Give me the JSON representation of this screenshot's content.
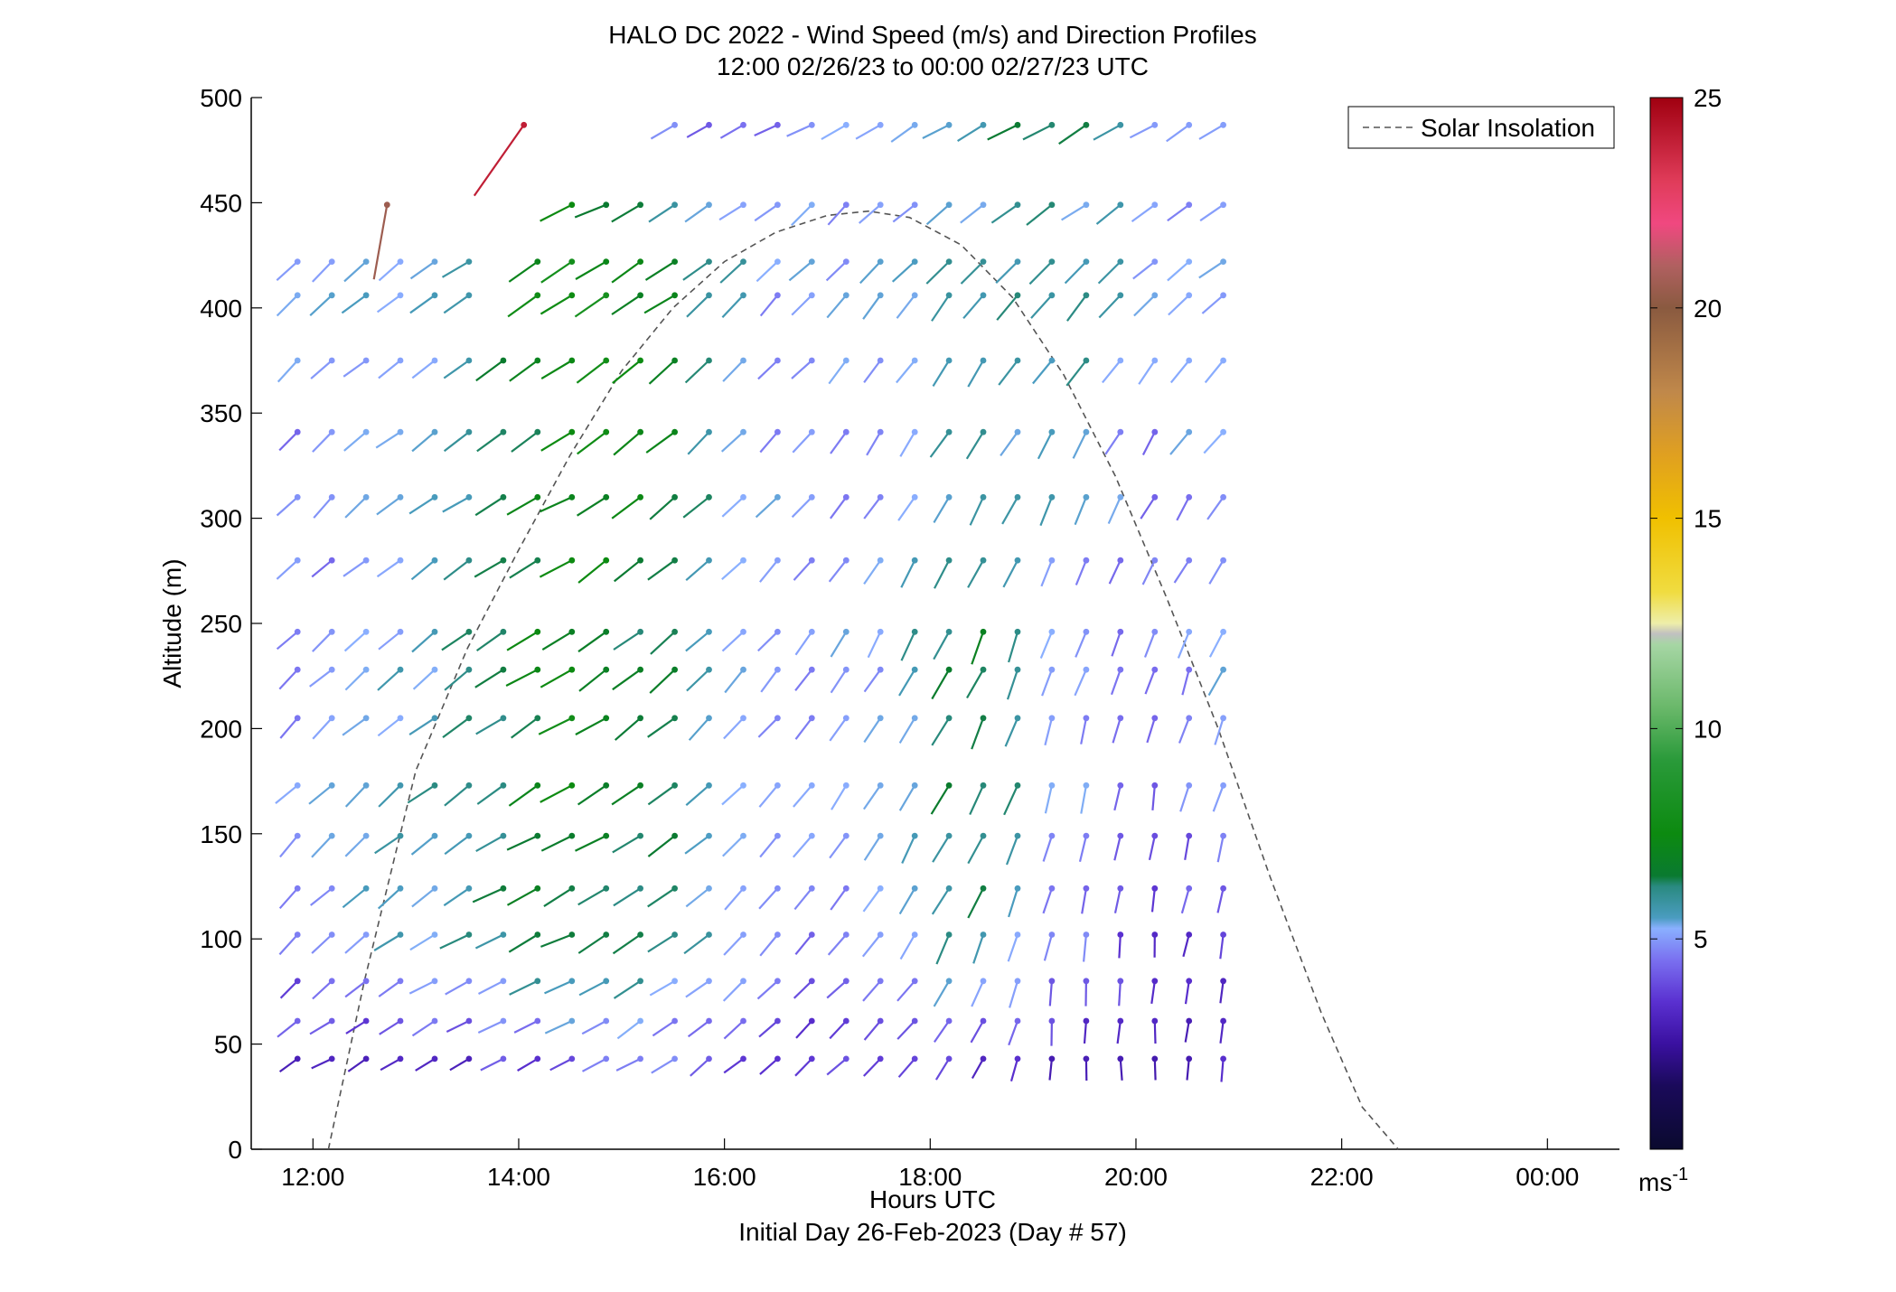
{
  "chart_data": {
    "type": "wind-barb-profile",
    "title": "HALO DC 2022 - Wind Speed (m/s) and Direction Profiles",
    "subtitle": "12:00 02/26/23 to 00:00 02/27/23  UTC",
    "xlabel": "Hours UTC",
    "xlabel2": "Initial Day 26-Feb-2023 (Day # 57)",
    "ylabel": "Altitude (m)",
    "xlim": [
      11.4,
      24.7
    ],
    "ylim": [
      0,
      500
    ],
    "x_ticks": [
      12,
      14,
      16,
      18,
      20,
      22,
      24
    ],
    "x_tick_labels": [
      "12:00",
      "14:00",
      "16:00",
      "18:00",
      "20:00",
      "22:00",
      "00:00"
    ],
    "y_ticks": [
      0,
      50,
      100,
      150,
      200,
      250,
      300,
      350,
      400,
      450,
      500
    ],
    "y_tick_labels": [
      "0",
      "50",
      "100",
      "150",
      "200",
      "250",
      "300",
      "350",
      "400",
      "450",
      "500"
    ],
    "colorbar": {
      "min": 0,
      "max": 25,
      "ticks": [
        5,
        10,
        15,
        20,
        25
      ],
      "tick_labels": [
        "5",
        "10",
        "15",
        "20",
        "25"
      ],
      "unit_label": "ms",
      "unit_exp": "-1"
    },
    "legend": {
      "entry": "Solar Insolation",
      "position": "top-right",
      "style": "dashed",
      "color": "#555555"
    },
    "solar_insolation": {
      "x": [
        12.15,
        12.5,
        13,
        13.5,
        14,
        14.5,
        15,
        15.5,
        16,
        16.5,
        17,
        17.4,
        17.8,
        18.3,
        18.8,
        19.3,
        19.8,
        20.3,
        20.8,
        21.3,
        21.8,
        22.2,
        22.55
      ],
      "y": [
        0,
        80,
        180,
        238,
        285,
        330,
        370,
        400,
        422,
        436,
        444,
        446,
        443,
        430,
        405,
        368,
        320,
        262,
        200,
        130,
        65,
        20,
        0
      ]
    },
    "altitudes": [
      43,
      61,
      80,
      102,
      124,
      149,
      173,
      205,
      228,
      246,
      280,
      310,
      341,
      375,
      406,
      422,
      449,
      487
    ],
    "times_start": 11.85,
    "times_step": 0.3333,
    "times_count": 28,
    "speed_anchors": {
      "x": [
        11.85,
        13.5,
        14.5,
        15.5,
        16.5,
        17.5,
        18.4,
        19.3,
        20.2,
        21.1,
        22.0,
        22.85
      ],
      "z": [
        43,
        100,
        175,
        250,
        330,
        410,
        449,
        487
      ],
      "values": [
        [
          3.5,
          3.5,
          4.0,
          4.5,
          3.5,
          3.5,
          3.5,
          3.0,
          3.0,
          3.0,
          3.5,
          3.5
        ],
        [
          4.5,
          6.0,
          7.0,
          6.0,
          4.5,
          4.5,
          6.5,
          4.5,
          3.5,
          3.5,
          5.5,
          4.5
        ],
        [
          5.0,
          6.0,
          7.5,
          6.5,
          5.0,
          5.0,
          7.0,
          5.0,
          4.5,
          5.0,
          6.5,
          6.0
        ],
        [
          4.5,
          6.0,
          7.5,
          6.5,
          5.0,
          5.0,
          7.0,
          5.0,
          4.5,
          5.5,
          7.0,
          6.5
        ],
        [
          4.5,
          5.5,
          7.5,
          7.0,
          5.0,
          4.5,
          6.0,
          5.5,
          4.5,
          5.5,
          7.0,
          7.5
        ],
        [
          5.0,
          6.0,
          8.0,
          7.0,
          5.0,
          5.0,
          6.0,
          6.5,
          5.0,
          5.5,
          7.5,
          8.0
        ],
        [
          5.0,
          5.0,
          7.5,
          6.0,
          5.0,
          5.0,
          5.5,
          6.0,
          5.0,
          5.0,
          6.5,
          8.0
        ],
        [
          4.5,
          4.5,
          7.0,
          4.5,
          4.5,
          5.0,
          6.0,
          7.0,
          4.5,
          4.5,
          4.5,
          4.5
        ]
      ]
    },
    "direction_anchors": {
      "x": [
        11.85,
        13.5,
        14.5,
        15.5,
        16.5,
        17.5,
        18.4,
        19.3,
        20.2,
        21.1,
        22.0,
        22.85
      ],
      "z": [
        43,
        100,
        175,
        250,
        330,
        410,
        449,
        487
      ],
      "values": [
        [
          240,
          240,
          245,
          235,
          225,
          225,
          210,
          180,
          180,
          195,
          210,
          215
        ],
        [
          225,
          240,
          245,
          235,
          225,
          220,
          205,
          190,
          185,
          195,
          210,
          215
        ],
        [
          225,
          235,
          240,
          230,
          220,
          210,
          205,
          195,
          190,
          200,
          215,
          220
        ],
        [
          225,
          235,
          240,
          230,
          220,
          210,
          205,
          200,
          200,
          210,
          220,
          225
        ],
        [
          225,
          235,
          240,
          230,
          225,
          215,
          210,
          210,
          210,
          220,
          225,
          230
        ],
        [
          225,
          235,
          240,
          235,
          225,
          220,
          220,
          220,
          225,
          230,
          235,
          240
        ],
        [
          230,
          240,
          245,
          240,
          230,
          225,
          230,
          235,
          235,
          240,
          245,
          245
        ],
        [
          235,
          240,
          245,
          240,
          240,
          240,
          240,
          240,
          240,
          240,
          240,
          240
        ]
      ]
    },
    "data_gaps": [
      {
        "above_altitude": 430,
        "before_hour": 14.1
      },
      {
        "above_altitude": 470,
        "before_hour": 15.5
      },
      {
        "above_altitude": 370,
        "band_low": 385,
        "band_high": 430,
        "after_hour": 14.0,
        "before_hour": 13.8
      }
    ],
    "outliers": [
      {
        "hour": 12.72,
        "altitude": 449,
        "speed": 20.5,
        "direction": 190
      },
      {
        "hour": 14.05,
        "altitude": 487,
        "speed": 24.0,
        "direction": 215
      }
    ]
  }
}
